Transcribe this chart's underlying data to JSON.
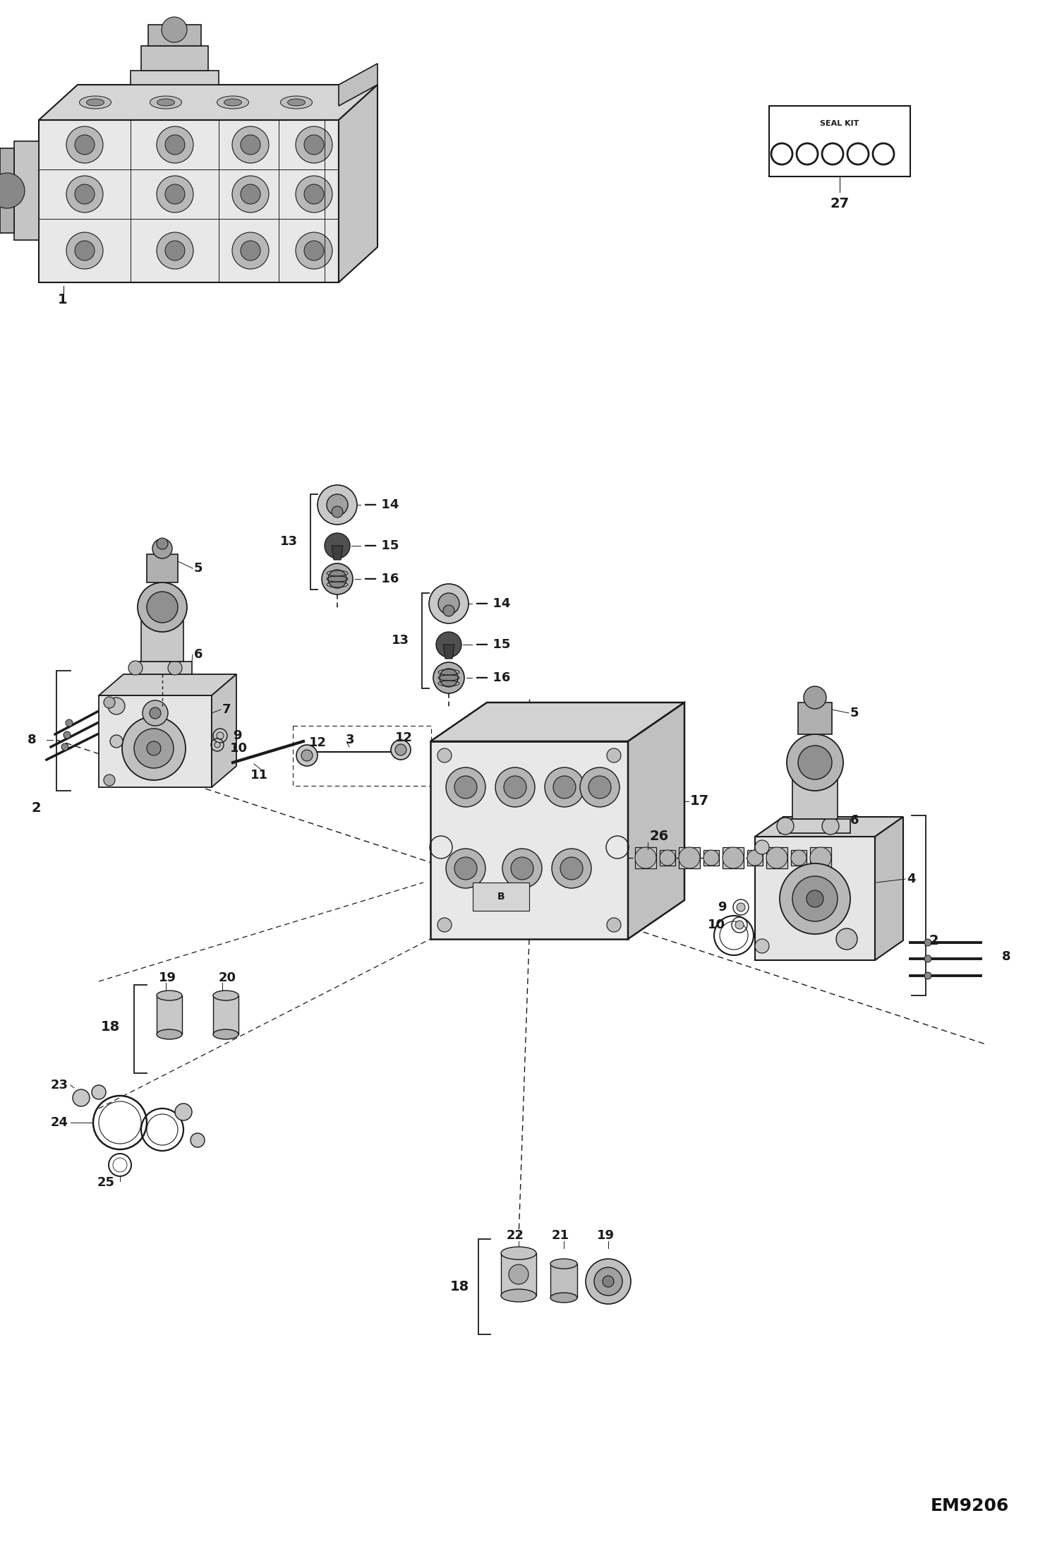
{
  "bg_color": "#ffffff",
  "line_color": "#1a1a1a",
  "fig_width": 14.98,
  "fig_height": 21.94,
  "dpi": 100,
  "diagram_code": "EM9206",
  "label_fs": 13
}
